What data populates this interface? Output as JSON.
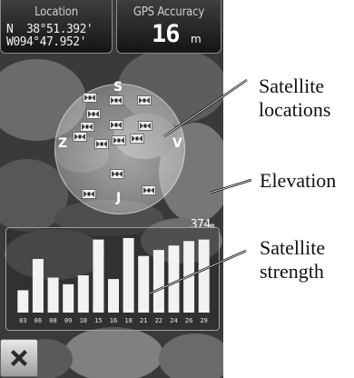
{
  "header": {
    "location_title": "Location",
    "coord_n": "N  38°51.392'",
    "coord_w": "W094°47.952'",
    "gps_title": "GPS Accuracy",
    "gps_value": "16",
    "gps_unit": "m"
  },
  "sky_view": {
    "north": "S",
    "west": "Z",
    "east": "V",
    "south": "J",
    "satellite_count_shown": 14
  },
  "elevation": {
    "value": "374",
    "unit": "m"
  },
  "chart_data": {
    "type": "bar",
    "title": "",
    "xlabel": "",
    "ylabel": "",
    "categories": [
      "03",
      "06",
      "08",
      "09",
      "10",
      "15",
      "16",
      "18",
      "21",
      "22",
      "24",
      "26",
      "29"
    ],
    "values": [
      0.3,
      0.72,
      0.47,
      0.38,
      0.5,
      0.98,
      0.45,
      1.0,
      0.76,
      0.84,
      0.9,
      0.96,
      0.98
    ],
    "values_unit": "fraction of maximum bar height",
    "bar_color": "#f2f2f2"
  },
  "controls": {
    "close_icon": "close-icon"
  },
  "annotations": {
    "satellite_locations": "Satellite\nlocations",
    "elevation": "Elevation",
    "satellite_strength": "Satellite\nstrength"
  }
}
